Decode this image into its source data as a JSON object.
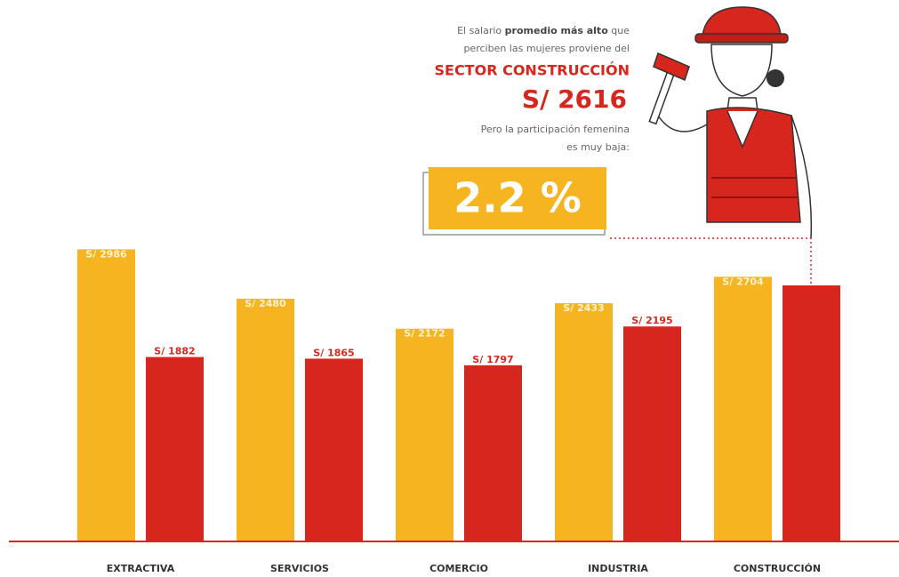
{
  "chart_data": {
    "type": "bar",
    "categories": [
      "EXTRACTIVA",
      "SERVICIOS",
      "COMERCIO",
      "INDUSTRIA",
      "CONSTRUCCIÓN"
    ],
    "series": [
      {
        "color": "#f6b421",
        "values": [
          2986,
          2480,
          2172,
          2433,
          2704
        ],
        "value_labels": [
          "S/ 2986",
          "S/ 2480",
          "S/ 2172",
          "S/ 2433",
          "S/ 2704"
        ]
      },
      {
        "color": "#d7261e",
        "values": [
          1882,
          1865,
          1797,
          2195,
          2616
        ],
        "value_labels": [
          "S/ 1882",
          "S/ 1865",
          "S/ 1797",
          "S/ 2195",
          null
        ]
      }
    ],
    "annotation": {
      "line1_a": "El salario",
      "line1_b": "promedio más alto",
      "line1_c": "que",
      "line2": "perciben las mujeres proviene del",
      "sector": "SECTOR CONSTRUCCIÓN",
      "salary": "S/ 2616",
      "line3": "Pero la participación femenina",
      "line4": "es muy baja:",
      "share": "2.2 %"
    }
  }
}
